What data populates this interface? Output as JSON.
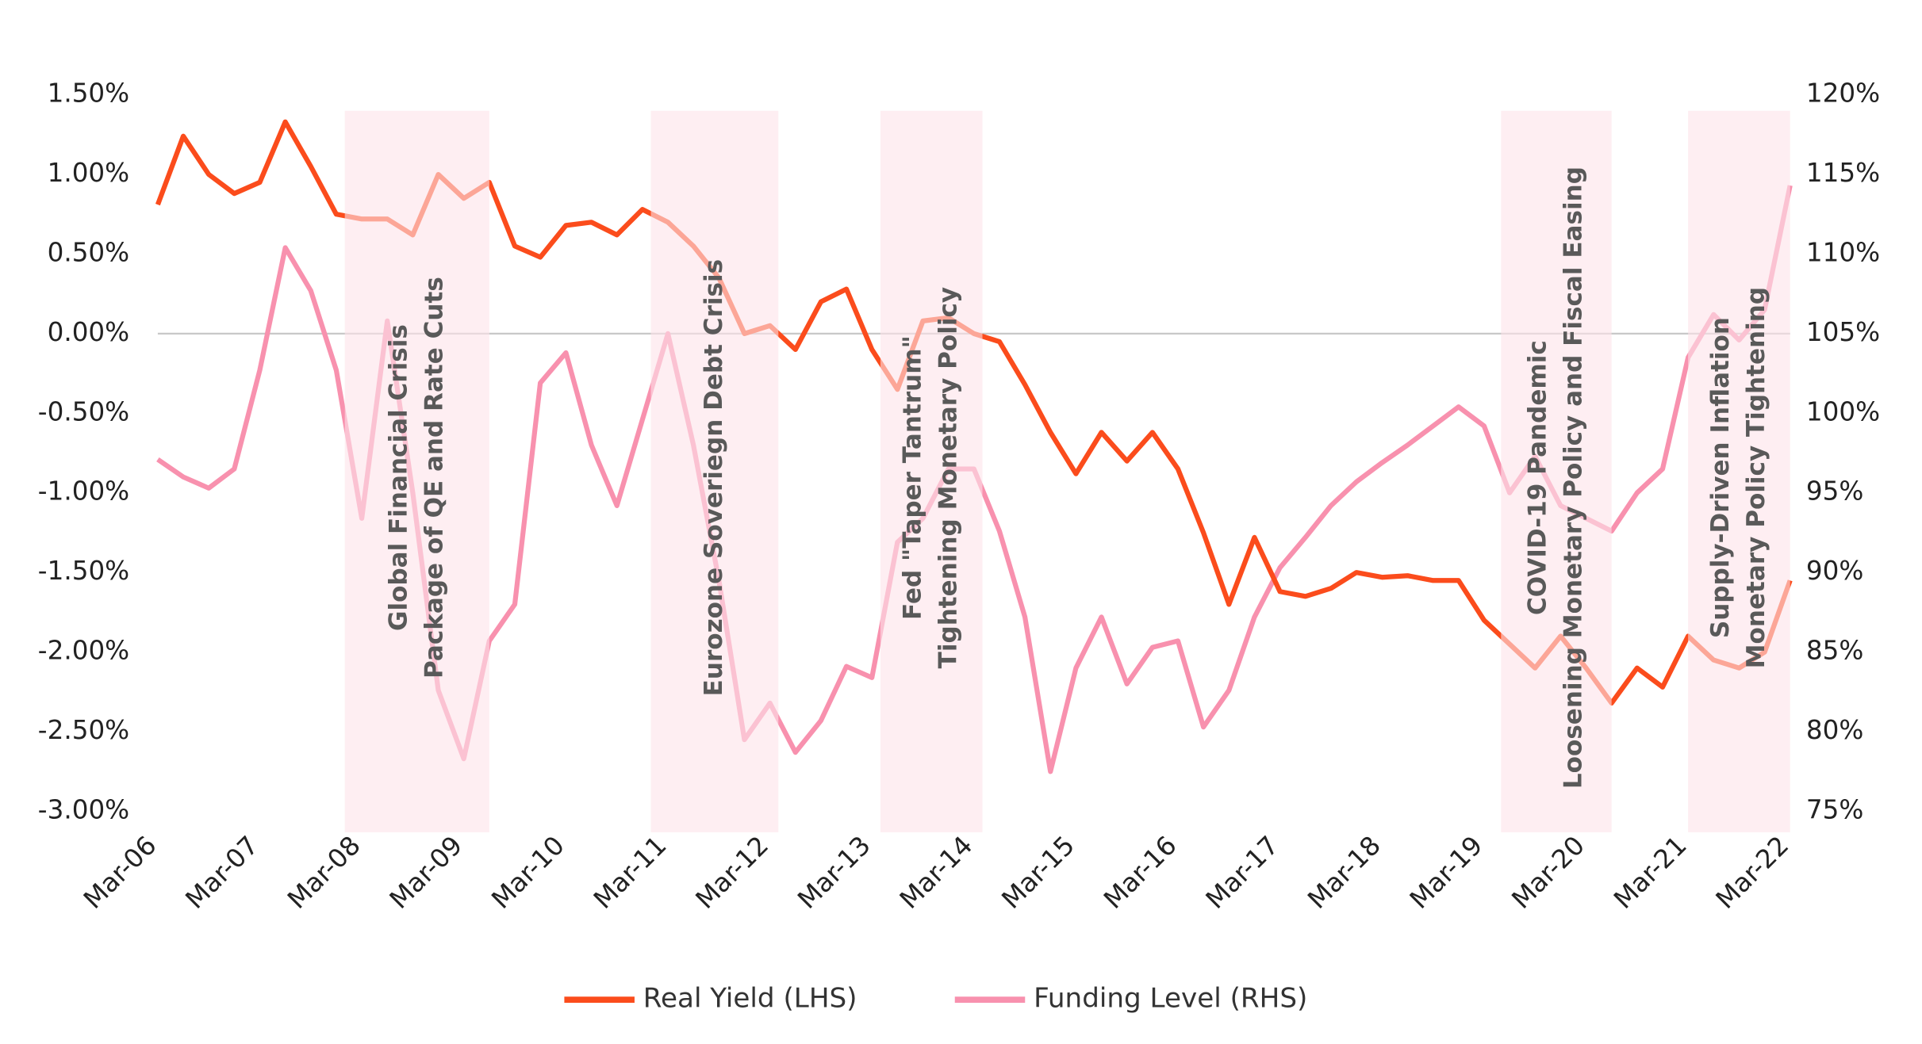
{
  "chart_data": {
    "type": "line",
    "x": [
      "2006-03",
      "2006-06",
      "2006-09",
      "2006-12",
      "2007-03",
      "2007-06",
      "2007-09",
      "2007-12",
      "2008-03",
      "2008-06",
      "2008-09",
      "2008-12",
      "2009-03",
      "2009-06",
      "2009-09",
      "2009-12",
      "2010-03",
      "2010-06",
      "2010-09",
      "2010-12",
      "2011-03",
      "2011-06",
      "2011-09",
      "2011-12",
      "2012-03",
      "2012-06",
      "2012-09",
      "2012-12",
      "2013-03",
      "2013-06",
      "2013-09",
      "2013-12",
      "2014-03",
      "2014-06",
      "2014-09",
      "2014-12",
      "2015-03",
      "2015-06",
      "2015-09",
      "2015-12",
      "2016-03",
      "2016-06",
      "2016-09",
      "2016-12",
      "2017-03",
      "2017-06",
      "2017-09",
      "2017-12",
      "2018-03",
      "2018-06",
      "2018-09",
      "2018-12",
      "2019-03",
      "2019-06",
      "2019-09",
      "2019-12",
      "2020-03",
      "2020-06",
      "2020-09",
      "2020-12",
      "2021-03",
      "2021-06",
      "2021-09",
      "2021-12",
      "2022-03"
    ],
    "series": [
      {
        "name": "Real Yield (LHS)",
        "color": "#fb4c1c",
        "axis": "y",
        "values": [
          0.81,
          1.24,
          1.0,
          0.88,
          0.95,
          1.33,
          1.05,
          0.75,
          0.72,
          0.72,
          0.62,
          1.0,
          0.85,
          0.95,
          0.55,
          0.48,
          0.68,
          0.7,
          0.62,
          0.78,
          0.7,
          0.55,
          0.35,
          0.0,
          0.05,
          -0.1,
          0.2,
          0.28,
          -0.1,
          -0.35,
          0.08,
          0.1,
          0.0,
          -0.05,
          -0.32,
          -0.62,
          -0.88,
          -0.62,
          -0.8,
          -0.62,
          -0.85,
          -1.25,
          -1.7,
          -1.28,
          -1.62,
          -1.65,
          -1.6,
          -1.5,
          -1.53,
          -1.52,
          -1.55,
          -1.55,
          -1.8,
          -1.95,
          -2.1,
          -1.9,
          -2.1,
          -2.32,
          -2.1,
          -2.22,
          -1.9,
          -2.05,
          -2.1,
          -2.0,
          -1.55
        ]
      },
      {
        "name": "Funding Level (RHS)",
        "color": "#f891ae",
        "axis": "y2",
        "values": [
          97.1,
          96.0,
          95.3,
          96.5,
          102.7,
          110.4,
          107.7,
          102.7,
          93.4,
          105.8,
          95.0,
          82.6,
          78.3,
          85.7,
          88.0,
          101.9,
          103.8,
          98.0,
          94.2,
          99.6,
          105.0,
          98.0,
          89.5,
          79.5,
          81.8,
          78.7,
          80.7,
          84.1,
          83.4,
          91.9,
          93.4,
          96.5,
          96.5,
          92.6,
          87.2,
          77.5,
          84.0,
          87.2,
          83.0,
          85.3,
          85.7,
          80.3,
          82.6,
          87.2,
          90.3,
          92.2,
          94.2,
          95.7,
          96.9,
          98.0,
          99.2,
          100.4,
          99.2,
          95.0,
          97.3,
          94.2,
          93.4,
          92.6,
          95.0,
          96.5,
          103.5,
          106.2,
          104.6,
          106.5,
          114.3
        ]
      }
    ],
    "xlim": [
      "2006-03",
      "2022-03"
    ],
    "xticks": [
      {
        "value": "2006-03",
        "label": "Mar-06"
      },
      {
        "value": "2007-03",
        "label": "Mar-07"
      },
      {
        "value": "2008-03",
        "label": "Mar-08"
      },
      {
        "value": "2009-03",
        "label": "Mar-09"
      },
      {
        "value": "2010-03",
        "label": "Mar-10"
      },
      {
        "value": "2011-03",
        "label": "Mar-11"
      },
      {
        "value": "2012-03",
        "label": "Mar-12"
      },
      {
        "value": "2013-03",
        "label": "Mar-13"
      },
      {
        "value": "2014-03",
        "label": "Mar-14"
      },
      {
        "value": "2015-03",
        "label": "Mar-15"
      },
      {
        "value": "2016-03",
        "label": "Mar-16"
      },
      {
        "value": "2017-03",
        "label": "Mar-17"
      },
      {
        "value": "2018-03",
        "label": "Mar-18"
      },
      {
        "value": "2019-03",
        "label": "Mar-19"
      },
      {
        "value": "2020-03",
        "label": "Mar-20"
      },
      {
        "value": "2021-03",
        "label": "Mar-21"
      },
      {
        "value": "2022-03",
        "label": "Mar-22"
      }
    ],
    "ylim": [
      -3.0,
      1.5
    ],
    "yticks": [
      {
        "value": 1.5,
        "label": "1.50%"
      },
      {
        "value": 1.0,
        "label": "1.00%"
      },
      {
        "value": 0.5,
        "label": "0.50%"
      },
      {
        "value": 0,
        "label": "0.00%"
      },
      {
        "value": -0.5,
        "label": "-0.50%"
      },
      {
        "value": -1.0,
        "label": "-1.00%"
      },
      {
        "value": -1.5,
        "label": "-1.50%"
      },
      {
        "value": -2.0,
        "label": "-2.00%"
      },
      {
        "value": -2.5,
        "label": "-2.50%"
      },
      {
        "value": -3.0,
        "label": "-3.00%"
      }
    ],
    "y2lim": [
      75,
      120
    ],
    "y2ticks": [
      {
        "value": 120,
        "label": "120%"
      },
      {
        "value": 115,
        "label": "115%"
      },
      {
        "value": 110,
        "label": "110%"
      },
      {
        "value": 105,
        "label": "105%"
      },
      {
        "value": 100,
        "label": "100%"
      },
      {
        "value": 95,
        "label": "95%"
      },
      {
        "value": 90,
        "label": "90%"
      },
      {
        "value": 85,
        "label": "85%"
      },
      {
        "value": 80,
        "label": "80%"
      },
      {
        "value": 75,
        "label": "75%"
      }
    ],
    "legend": "bottom",
    "annotations": [
      {
        "start": "2008-01",
        "end": "2009-06",
        "lines": [
          "Global Financial Crisis",
          "Package of QE and Rate Cuts"
        ]
      },
      {
        "start": "2011-01",
        "end": "2012-04",
        "lines": [
          "Eurozone Soveriegn Debt Crisis"
        ]
      },
      {
        "start": "2013-04",
        "end": "2014-04",
        "lines": [
          "Fed \"Taper Tantrum\"",
          "Tightening Monetary Policy"
        ]
      },
      {
        "start": "2019-05",
        "end": "2020-06",
        "lines": [
          "COVID-19 Pandemic",
          "Loosening Monetary Policy and Fiscal Easing"
        ]
      },
      {
        "start": "2021-03",
        "end": "2022-03",
        "lines": [
          "Supply-Driven Inflation",
          "Monetary Policy Tightening"
        ]
      }
    ]
  }
}
